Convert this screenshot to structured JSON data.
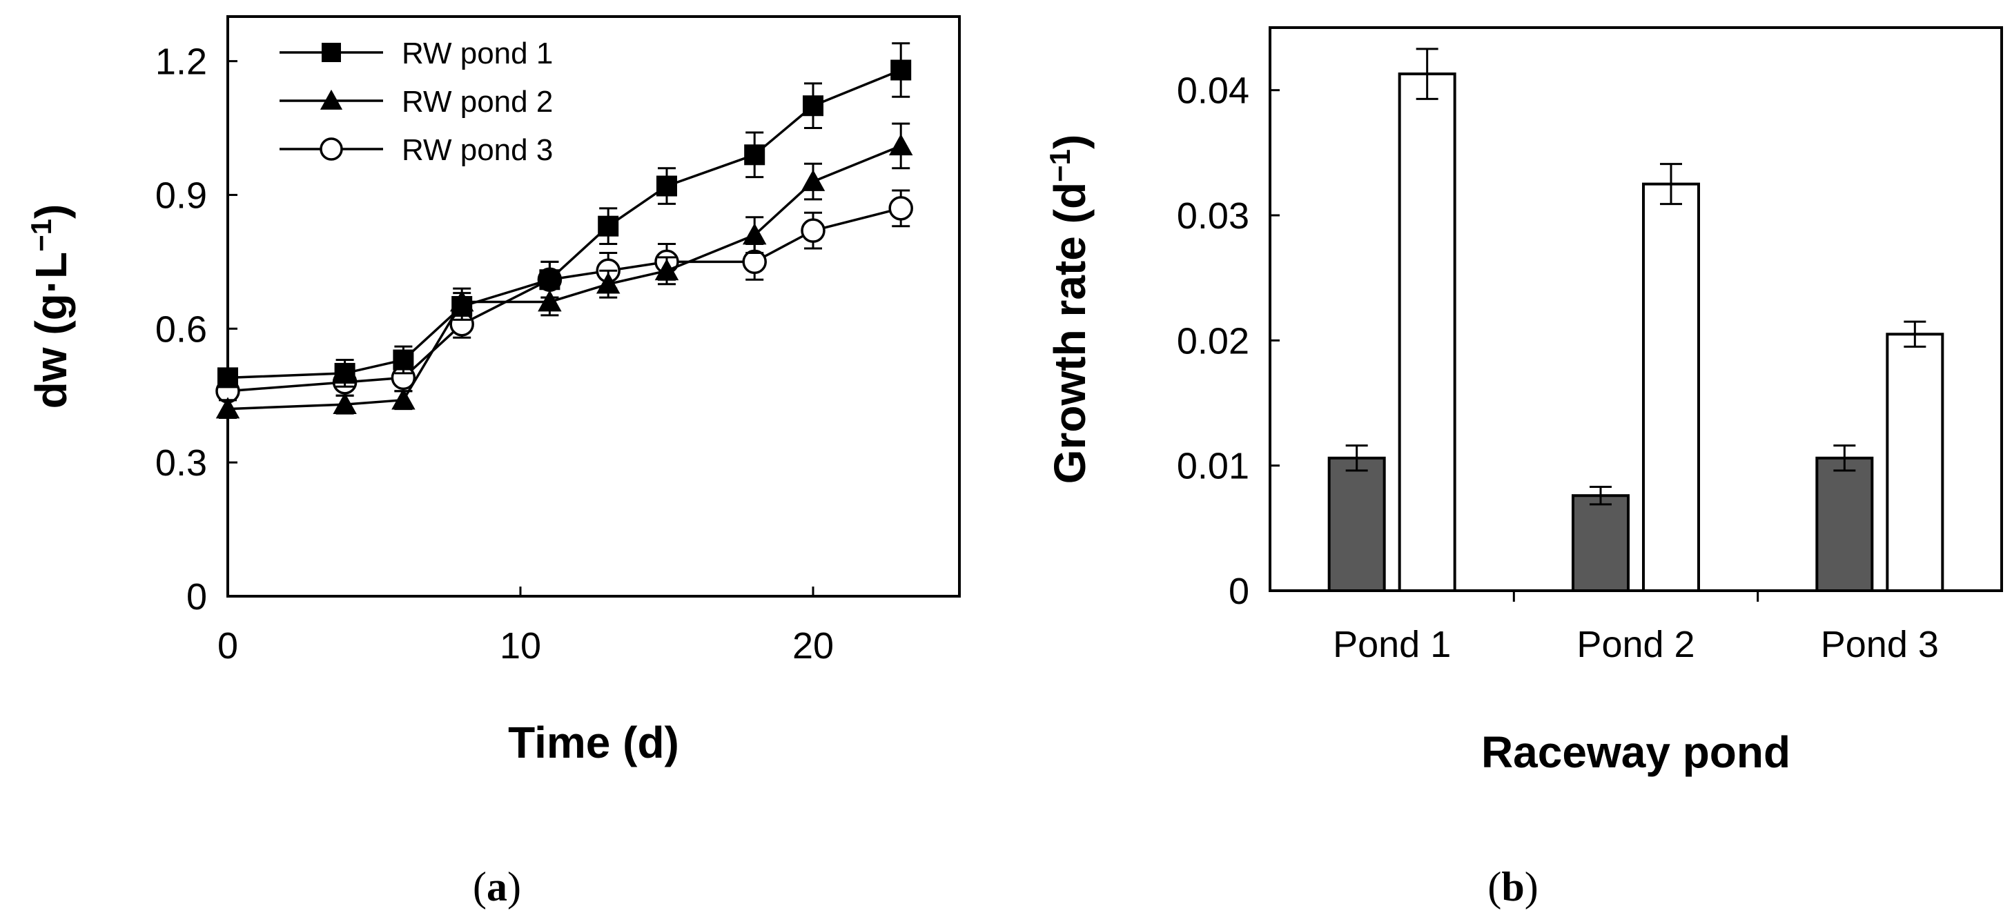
{
  "chart_data": [
    {
      "type": "line",
      "panel_label": {
        "open": "(",
        "letter": "a",
        "close": ")"
      },
      "title": "",
      "xlabel": "Time (d)",
      "ylabel": {
        "base": "dw (g·L",
        "sup": "−1",
        "close": ")"
      },
      "xlim": [
        0,
        25
      ],
      "ylim": [
        0,
        1.3
      ],
      "xticks": [
        0,
        10,
        20
      ],
      "xtick_labels": [
        "0",
        "10",
        "20"
      ],
      "yticks": [
        0,
        0.3,
        0.6,
        0.9,
        1.2
      ],
      "ytick_labels": [
        "0",
        "0.3",
        "0.6",
        "0.9",
        "1.2"
      ],
      "legend_position": "top-left",
      "series": [
        {
          "name": "RW pond 1",
          "marker": "square-filled",
          "x": [
            0,
            4,
            6,
            8,
            11,
            13,
            15,
            18,
            20,
            23
          ],
          "y": [
            0.49,
            0.5,
            0.53,
            0.65,
            0.71,
            0.83,
            0.92,
            0.99,
            1.1,
            1.18
          ],
          "err": [
            0.02,
            0.03,
            0.03,
            0.03,
            0.04,
            0.04,
            0.04,
            0.05,
            0.05,
            0.06
          ]
        },
        {
          "name": "RW pond 2",
          "marker": "triangle-filled",
          "x": [
            0,
            4,
            6,
            8,
            11,
            13,
            15,
            18,
            20,
            23
          ],
          "y": [
            0.42,
            0.43,
            0.44,
            0.66,
            0.66,
            0.7,
            0.73,
            0.81,
            0.93,
            1.01
          ],
          "err": [
            0.02,
            0.02,
            0.02,
            0.03,
            0.03,
            0.03,
            0.03,
            0.04,
            0.04,
            0.05
          ]
        },
        {
          "name": "RW pond 3",
          "marker": "circle-open",
          "x": [
            0,
            4,
            6,
            8,
            11,
            13,
            15,
            18,
            20,
            23
          ],
          "y": [
            0.46,
            0.48,
            0.49,
            0.61,
            0.71,
            0.73,
            0.75,
            0.75,
            0.82,
            0.87
          ],
          "err": [
            0.02,
            0.03,
            0.03,
            0.03,
            0.04,
            0.04,
            0.04,
            0.04,
            0.04,
            0.04
          ]
        }
      ]
    },
    {
      "type": "bar",
      "panel_label": {
        "open": "(",
        "letter": "b",
        "close": ")"
      },
      "title": "",
      "xlabel": "Raceway pond",
      "ylabel": {
        "base": "Growth rate (d",
        "sup": "−1",
        "close": ")"
      },
      "categories": [
        "Pond 1",
        "Pond 2",
        "Pond 3"
      ],
      "ylim": [
        0,
        0.045
      ],
      "yticks": [
        0,
        0.01,
        0.02,
        0.03,
        0.04
      ],
      "ytick_labels": [
        "0",
        "0.01",
        "0.02",
        "0.03",
        "0.04"
      ],
      "series": [
        {
          "name": "dark",
          "color": "#595959",
          "values": [
            0.0106,
            0.0076,
            0.0106
          ],
          "err": [
            0.001,
            0.0007,
            0.001
          ]
        },
        {
          "name": "light",
          "color": "#ffffff",
          "values": [
            0.0413,
            0.0325,
            0.0205
          ],
          "err": [
            0.002,
            0.0016,
            0.001
          ]
        }
      ]
    }
  ]
}
